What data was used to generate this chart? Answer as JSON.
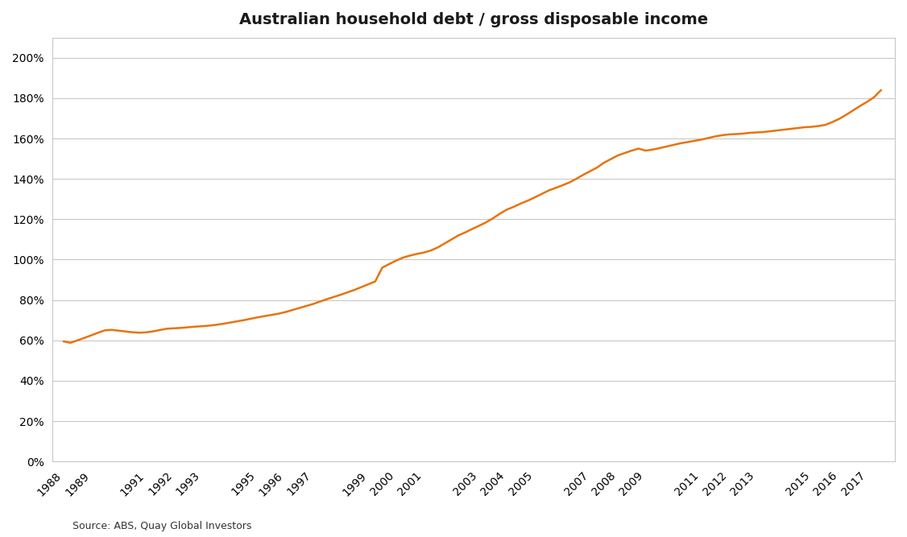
{
  "title": "Australian household debt / gross disposable income",
  "source_text": "Source: ABS, Quay Global Investors",
  "line_color": "#E8730C",
  "background_color": "#FFFFFF",
  "grid_color": "#C8C8C8",
  "border_color": "#C8C8C8",
  "years": [
    1988.0,
    1988.25,
    1988.5,
    1988.75,
    1989.0,
    1989.25,
    1989.5,
    1989.75,
    1990.0,
    1990.25,
    1990.5,
    1990.75,
    1991.0,
    1991.25,
    1991.5,
    1991.75,
    1992.0,
    1992.25,
    1992.5,
    1992.75,
    1993.0,
    1993.25,
    1993.5,
    1993.75,
    1994.0,
    1994.25,
    1994.5,
    1994.75,
    1995.0,
    1995.25,
    1995.5,
    1995.75,
    1996.0,
    1996.25,
    1996.5,
    1996.75,
    1997.0,
    1997.25,
    1997.5,
    1997.75,
    1998.0,
    1998.25,
    1998.5,
    1998.75,
    1999.0,
    1999.25,
    1999.5,
    1999.75,
    2000.0,
    2000.25,
    2000.5,
    2000.75,
    2001.0,
    2001.25,
    2001.5,
    2001.75,
    2002.0,
    2002.25,
    2002.5,
    2002.75,
    2003.0,
    2003.25,
    2003.5,
    2003.75,
    2004.0,
    2004.25,
    2004.5,
    2004.75,
    2005.0,
    2005.25,
    2005.5,
    2005.75,
    2006.0,
    2006.25,
    2006.5,
    2006.75,
    2007.0,
    2007.25,
    2007.5,
    2007.75,
    2008.0,
    2008.25,
    2008.5,
    2008.75,
    2009.0,
    2009.25,
    2009.5,
    2009.75,
    2010.0,
    2010.25,
    2010.5,
    2010.75,
    2011.0,
    2011.25,
    2011.5,
    2011.75,
    2012.0,
    2012.25,
    2012.5,
    2012.75,
    2013.0,
    2013.25,
    2013.5,
    2013.75,
    2014.0,
    2014.25,
    2014.5,
    2014.75,
    2015.0,
    2015.25,
    2015.5,
    2015.75,
    2016.0,
    2016.25,
    2016.5,
    2016.75,
    2017.0,
    2017.25,
    2017.5
  ],
  "values": [
    0.595,
    0.588,
    0.6,
    0.612,
    0.625,
    0.638,
    0.65,
    0.652,
    0.648,
    0.644,
    0.64,
    0.638,
    0.64,
    0.645,
    0.652,
    0.658,
    0.66,
    0.662,
    0.665,
    0.668,
    0.67,
    0.673,
    0.677,
    0.682,
    0.688,
    0.694,
    0.7,
    0.707,
    0.714,
    0.72,
    0.726,
    0.732,
    0.74,
    0.75,
    0.76,
    0.77,
    0.78,
    0.792,
    0.804,
    0.815,
    0.826,
    0.838,
    0.85,
    0.864,
    0.878,
    0.892,
    0.96,
    0.978,
    0.995,
    1.01,
    1.02,
    1.028,
    1.035,
    1.045,
    1.06,
    1.08,
    1.1,
    1.12,
    1.135,
    1.152,
    1.168,
    1.185,
    1.205,
    1.228,
    1.248,
    1.262,
    1.278,
    1.292,
    1.308,
    1.325,
    1.342,
    1.355,
    1.368,
    1.382,
    1.4,
    1.42,
    1.438,
    1.456,
    1.48,
    1.498,
    1.516,
    1.528,
    1.54,
    1.55,
    1.54,
    1.545,
    1.552,
    1.56,
    1.568,
    1.576,
    1.582,
    1.588,
    1.594,
    1.602,
    1.61,
    1.616,
    1.62,
    1.622,
    1.624,
    1.628,
    1.63,
    1.632,
    1.636,
    1.64,
    1.644,
    1.648,
    1.652,
    1.656,
    1.658,
    1.662,
    1.668,
    1.682,
    1.698,
    1.718,
    1.74,
    1.762,
    1.782,
    1.805,
    1.84
  ],
  "xtick_labels": [
    "1988",
    "1989",
    "1991",
    "1992",
    "1993",
    "1995",
    "1996",
    "1997",
    "1999",
    "2000",
    "2001",
    "2003",
    "2004",
    "2005",
    "2007",
    "2008",
    "2009",
    "2011",
    "2012",
    "2013",
    "2015",
    "2016",
    "2017"
  ],
  "xtick_positions": [
    1988,
    1989,
    1991,
    1992,
    1993,
    1995,
    1996,
    1997,
    1999,
    2000,
    2001,
    2003,
    2004,
    2005,
    2007,
    2008,
    2009,
    2011,
    2012,
    2013,
    2015,
    2016,
    2017
  ],
  "xlim": [
    1987.6,
    2018.0
  ],
  "ylim": [
    0,
    2.1
  ],
  "yticks": [
    0.0,
    0.2,
    0.4,
    0.6,
    0.8,
    1.0,
    1.2,
    1.4,
    1.6,
    1.8,
    2.0
  ],
  "title_fontsize": 14,
  "tick_fontsize": 10,
  "source_fontsize": 9,
  "line_width": 1.8
}
